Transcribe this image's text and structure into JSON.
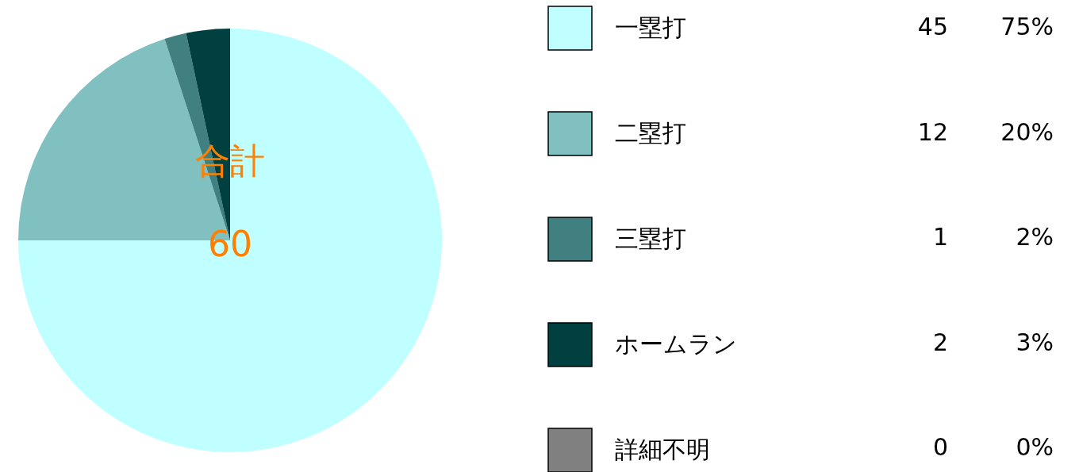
{
  "chart_data": {
    "type": "pie",
    "categories": [
      "一塁打",
      "二塁打",
      "三塁打",
      "ホームラン",
      "詳細不明"
    ],
    "values": [
      45,
      12,
      1,
      2,
      0
    ],
    "colors": [
      "#c0ffff",
      "#80c0c0",
      "#408080",
      "#004040",
      "#808080"
    ],
    "value_labels": [
      "45",
      "12",
      "1",
      "2",
      "0"
    ],
    "annotations": [
      "合計",
      "60",
      {
        "text": "75%",
        "x": "一塁打"
      },
      {
        "text": "20%",
        "x": "二塁打"
      },
      {
        "text": "2%",
        "x": "三塁打"
      },
      {
        "text": "3%",
        "x": "ホームラン"
      },
      {
        "text": "0%",
        "x": "詳細不明"
      }
    ],
    "legend": "right"
  }
}
